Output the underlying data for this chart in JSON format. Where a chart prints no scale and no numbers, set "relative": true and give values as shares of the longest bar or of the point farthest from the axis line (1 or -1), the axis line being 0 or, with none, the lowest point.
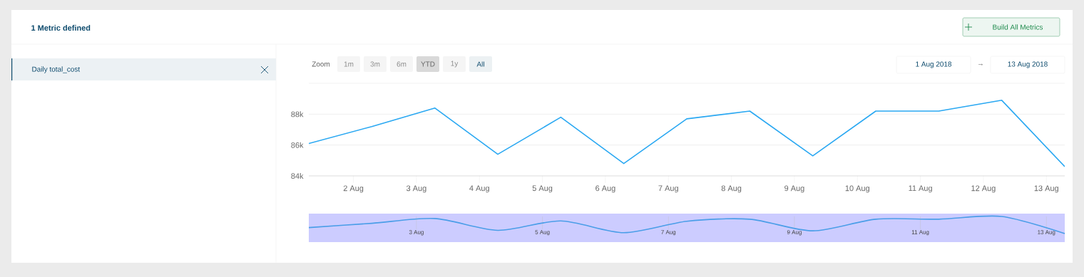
{
  "chart_data": [
    {
      "type": "line",
      "annotations": [
        "1 Metric defined",
        "Daily total_cost",
        "Build All Metrics",
        "Zoom",
        "1m",
        "3m",
        "6m",
        "YTD",
        "1y",
        "All",
        "1 Aug 2018",
        "→",
        "13 Aug 2018"
      ],
      "x": [
        "2018-08-01T07:00",
        "2018-08-02T07:00",
        "2018-08-03T07:00",
        "2018-08-04T07:00",
        "2018-08-05T07:00",
        "2018-08-06T07:00",
        "2018-08-07T07:00",
        "2018-08-08T07:00",
        "2018-08-09T07:00",
        "2018-08-10T07:00",
        "2018-08-11T07:00",
        "2018-08-12T07:00",
        "2018-08-13T07:00"
      ],
      "series": [
        {
          "color": "#2aa8f2",
          "values": [
            86100,
            87200,
            88400,
            85400,
            87800,
            84800,
            87700,
            88200,
            85300,
            88200,
            88200,
            88900,
            84600
          ]
        }
      ],
      "xlim": [
        "2018-08-01T07:00",
        "2018-08-13T07:00"
      ],
      "xticks": [
        {
          "value": "2018-08-02",
          "label": "2 Aug"
        },
        {
          "value": "2018-08-03",
          "label": "3 Aug"
        },
        {
          "value": "2018-08-04",
          "label": "4 Aug"
        },
        {
          "value": "2018-08-05",
          "label": "5 Aug"
        },
        {
          "value": "2018-08-06",
          "label": "6 Aug"
        },
        {
          "value": "2018-08-07",
          "label": "7 Aug"
        },
        {
          "value": "2018-08-08",
          "label": "8 Aug"
        },
        {
          "value": "2018-08-09",
          "label": "9 Aug"
        },
        {
          "value": "2018-08-10",
          "label": "10 Aug"
        },
        {
          "value": "2018-08-11",
          "label": "11 Aug"
        },
        {
          "value": "2018-08-12",
          "label": "12 Aug"
        },
        {
          "value": "2018-08-13",
          "label": "13 Aug"
        }
      ],
      "ylim": [
        84000,
        90000
      ],
      "yticks": [
        {
          "value": 84000,
          "label": "84k"
        },
        {
          "value": 86000,
          "label": "86k"
        },
        {
          "value": 88000,
          "label": "88k"
        },
        {
          "value": 90000,
          "label": null
        }
      ],
      "grid": "y",
      "line_style": "solid",
      "marker": "none"
    },
    {
      "type": "line",
      "relative": true,
      "x": [
        "2018-08-01T07:00",
        "2018-08-02T07:00",
        "2018-08-03T07:00",
        "2018-08-04T07:00",
        "2018-08-05T07:00",
        "2018-08-06T07:00",
        "2018-08-07T07:00",
        "2018-08-08T07:00",
        "2018-08-09T07:00",
        "2018-08-10T07:00",
        "2018-08-11T07:00",
        "2018-08-12T07:00",
        "2018-08-13T07:00"
      ],
      "series": [
        {
          "color": "#4a9ee8",
          "values": [
            0.35,
            0.6,
            0.88,
            0.19,
            0.74,
            0.05,
            0.72,
            0.84,
            0.16,
            0.84,
            0.84,
            1,
            0
          ]
        }
      ],
      "xlim": [
        "2018-08-01T07:00",
        "2018-08-13T07:00"
      ],
      "xticks": [
        {
          "value": "2018-08-03",
          "label": "3 Aug"
        },
        {
          "value": "2018-08-05",
          "label": "5 Aug"
        },
        {
          "value": "2018-08-07",
          "label": "7 Aug"
        },
        {
          "value": "2018-08-09",
          "label": "9 Aug"
        },
        {
          "value": "2018-08-11",
          "label": "11 Aug"
        },
        {
          "value": "2018-08-13",
          "label": "13 Aug"
        }
      ],
      "grid": "x",
      "line_style": "solid",
      "marker": "none"
    }
  ]
}
